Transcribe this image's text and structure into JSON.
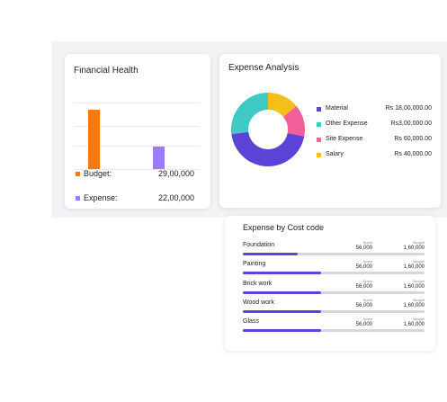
{
  "financial_health": {
    "title": "Financial Health",
    "budget": {
      "label": "Budget:",
      "value": "29,00,000",
      "color": "#f7790f",
      "amount": 2900000
    },
    "expense": {
      "label": "Expense:",
      "value": "22,00,000",
      "color": "#9b7bff",
      "amount": 2200000
    }
  },
  "expense_analysis": {
    "title": "Expense Analysis",
    "items": [
      {
        "label": "Material",
        "value": "Rs 18,00,000.00",
        "color": "#5b43d6",
        "share": 0.45
      },
      {
        "label": "Other Expense",
        "value": "Rs3,00,000.00",
        "color": "#3ec9c4",
        "share": 0.27
      },
      {
        "label": "Site Expense",
        "value": "Rs 60,000.00",
        "color": "#f2609a",
        "share": 0.14
      },
      {
        "label": "Salary",
        "value": "Rs 40,000.00",
        "color": "#f6be1b",
        "share": 0.14
      }
    ]
  },
  "cost_code": {
    "title": "Expense by Cost code",
    "spent_caption": "Spent",
    "budget_caption": "Budget",
    "fill_color": "#5a46d6",
    "items": [
      {
        "name": "Foundation",
        "spent": "56,000",
        "budget": "1,60,000",
        "progress": 0.3
      },
      {
        "name": "Painting",
        "spent": "56,000",
        "budget": "1,60,000",
        "progress": 0.43
      },
      {
        "name": "Brick work",
        "spent": "56,000",
        "budget": "1,60,000",
        "progress": 0.43
      },
      {
        "name": "Wood work",
        "spent": "56,000",
        "budget": "1,60,000",
        "progress": 0.43
      },
      {
        "name": "Glass",
        "spent": "56,000",
        "budget": "1,60,000",
        "progress": 0.43
      }
    ]
  }
}
